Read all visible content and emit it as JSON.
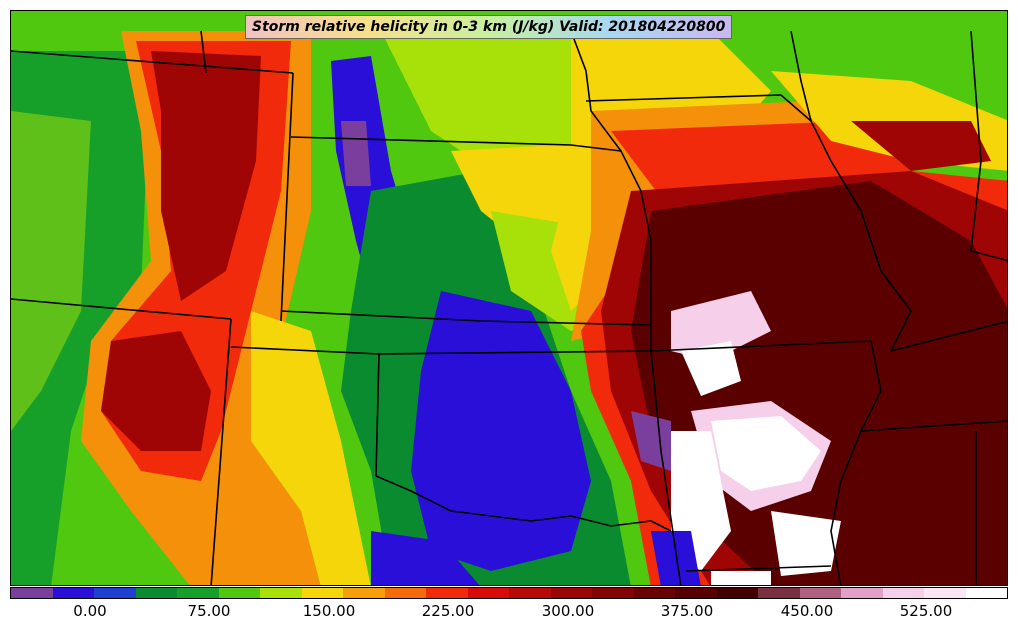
{
  "title": "Storm relative helicity in 0-3 km (J/kg) Valid: 201804220800",
  "colorbar": {
    "colors": [
      "#7a3e9d",
      "#2a0fd8",
      "#1f3fcf",
      "#0b8b2f",
      "#16a02a",
      "#4fc80f",
      "#a8e00a",
      "#f5d60a",
      "#f5a00a",
      "#f56a0a",
      "#f02a0a",
      "#d80a0a",
      "#b80808",
      "#9a0606",
      "#820404",
      "#6a0202",
      "#560000",
      "#420000",
      "#7a3040",
      "#b06080",
      "#e0a0c8",
      "#f6d0ea",
      "#fbe6f4",
      "#ffffff"
    ],
    "tick_labels": [
      "0.00",
      "75.00",
      "150.00",
      "225.00",
      "300.00",
      "375.00",
      "450.00",
      "525.00"
    ]
  },
  "map": {
    "field_colors": {
      "purple": "#7a3e9d",
      "blue": "#2a0fd8",
      "darkgreen": "#0b8b2f",
      "green": "#16a02a",
      "lightgreen": "#4fc80f",
      "lime": "#a8e00a",
      "yellow": "#f5d60a",
      "orange": "#f5900a",
      "red": "#f02a0a",
      "darkred": "#a00505",
      "maroon": "#5a0000",
      "pink": "#f6d0ea",
      "white": "#ffffff"
    },
    "border_color": "#000000"
  }
}
